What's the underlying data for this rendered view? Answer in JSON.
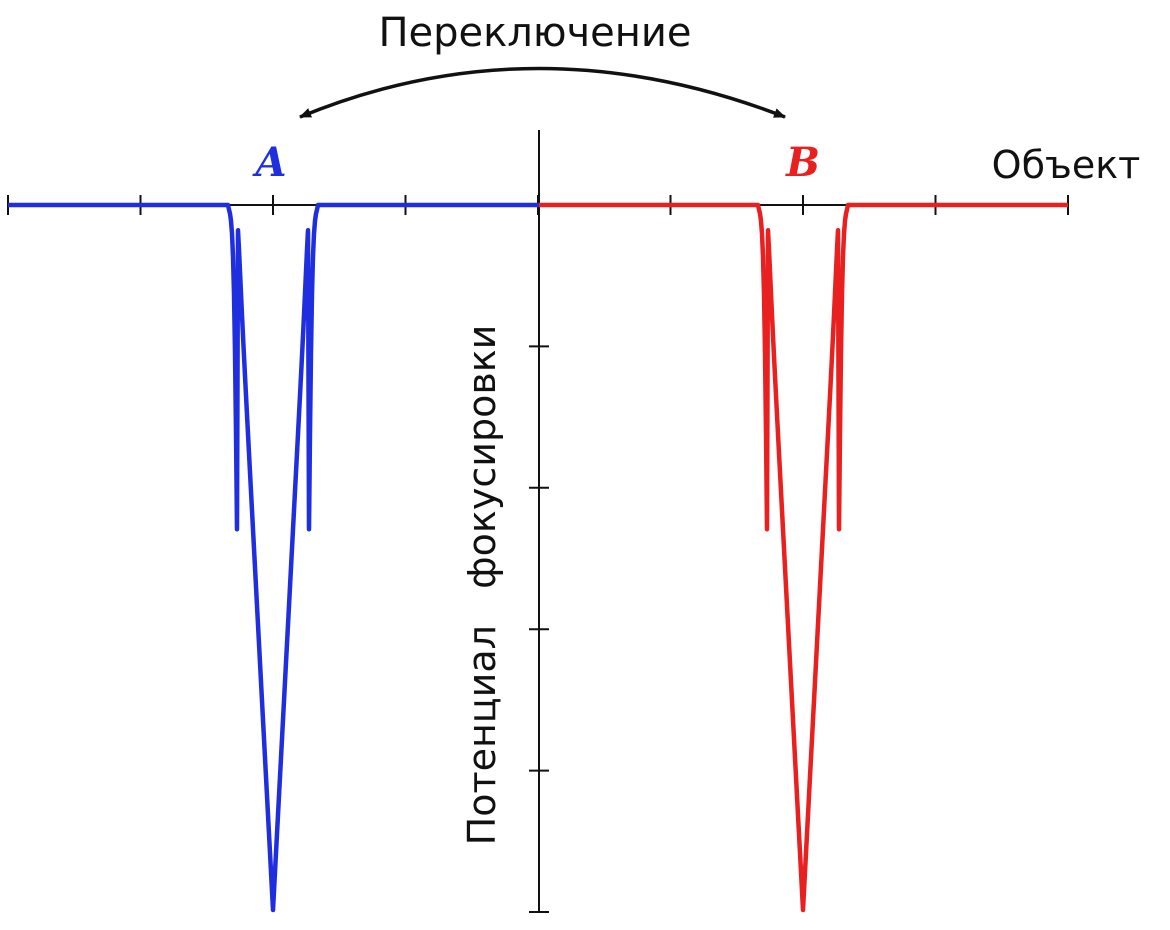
{
  "title": "Переключение",
  "x_axis_label": "Объект",
  "y_axis_label": "Потенциал   фокусировки",
  "wells": [
    {
      "label": "A",
      "color": "#1f2fe0"
    },
    {
      "label": "B",
      "color": "#e82020"
    }
  ],
  "axis_color": "#111111",
  "arrow": {
    "direction": "both",
    "connects": [
      "A",
      "B"
    ]
  },
  "x_ticks": 8,
  "y_ticks": 5
}
